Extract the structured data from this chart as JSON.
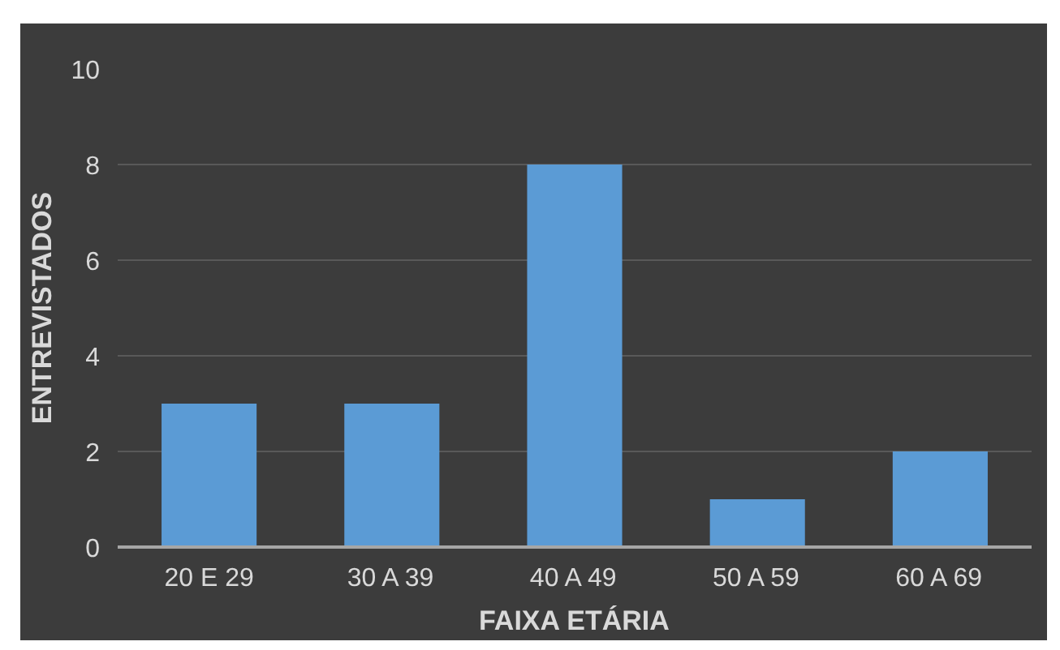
{
  "chart_data": {
    "type": "bar",
    "xlabel": "FAIXA ETÁRIA",
    "ylabel": "ENTREVISTADOS",
    "categories": [
      "20 E 29",
      "30 A 39",
      "40 A 49",
      "50 A 59",
      "60 A 69"
    ],
    "values": [
      3,
      3,
      8,
      1,
      2
    ],
    "color": "#5b9bd5",
    "ylim": [
      0,
      10
    ],
    "yticks": [
      0,
      2,
      4,
      6,
      8,
      10
    ],
    "grid": "y"
  }
}
